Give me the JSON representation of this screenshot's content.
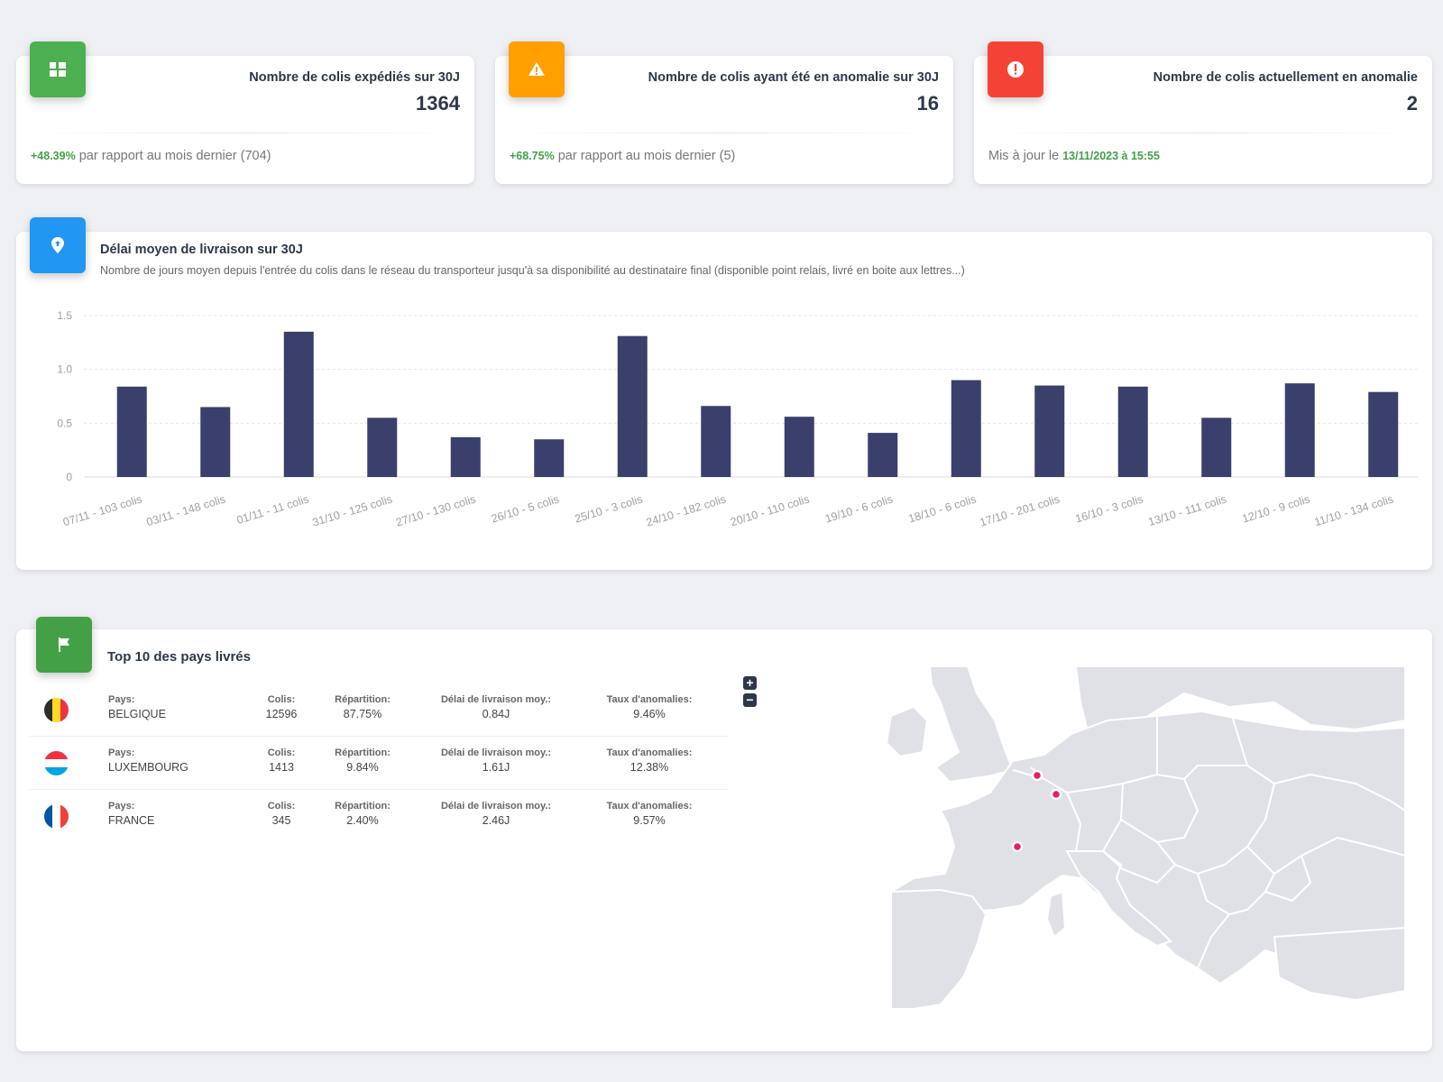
{
  "stats": [
    {
      "title": "Nombre de colis expédiés sur 30J",
      "value": "1364",
      "change": "+48.39%",
      "foot_text": " par rapport au mois dernier (704)",
      "color": "#4caf50",
      "icon": "parcels-icon"
    },
    {
      "title": "Nombre de colis ayant été en anomalie sur 30J",
      "value": "16",
      "change": "+68.75%",
      "foot_text": " par rapport au mois dernier (5)",
      "color": "#ffa000",
      "icon": "warning-icon"
    },
    {
      "title": "Nombre de colis actuellement en anomalie",
      "value": "2",
      "foot_prefix": "Mis à jour le ",
      "updated": "13/11/2023 à 15:55",
      "color": "#f44336",
      "icon": "alert-circle-icon"
    }
  ],
  "chart": {
    "title": "Délai moyen de livraison sur 30J",
    "subtitle": "Nombre de jours moyen depuis l'entrée du colis dans le réseau du transporteur jusqu'à sa disponibilité au destinataire final (disponible point relais, livré en boite aux lettres...)",
    "badge_color": "#2196f3",
    "icon": "location-pin-icon"
  },
  "chart_data": {
    "type": "bar",
    "categories": [
      "07/11 - 103 colis",
      "03/11 - 148 colis",
      "01/11 - 11 colis",
      "31/10 - 125 colis",
      "27/10 - 130 colis",
      "26/10 - 5 colis",
      "25/10 - 3 colis",
      "24/10 - 182 colis",
      "20/10 - 110 colis",
      "19/10 - 6 colis",
      "18/10 - 6 colis",
      "17/10 - 201 colis",
      "16/10 - 3 colis",
      "13/10 - 111 colis",
      "12/10 - 9 colis",
      "11/10 - 134 colis"
    ],
    "values": [
      0.84,
      0.65,
      1.35,
      0.55,
      0.37,
      0.35,
      1.31,
      0.66,
      0.56,
      0.41,
      0.9,
      0.85,
      0.84,
      0.55,
      0.87,
      0.79
    ],
    "yticks": [
      "0",
      "0.5",
      "1.0",
      "1.5"
    ],
    "ylim": [
      0,
      1.5
    ],
    "bar_color": "#3b3f6b",
    "grid": true
  },
  "countries": {
    "title": "Top 10 des pays livrés",
    "badge_color": "#43a047",
    "icon": "flag-icon",
    "labels": {
      "country": "Pays:",
      "parcels": "Colis:",
      "share": "Répartition:",
      "delay": "Délai de livraison moy.:",
      "anomaly": "Taux d'anomalies:"
    },
    "rows": [
      {
        "country": "BELGIQUE",
        "parcels": "12596",
        "share": "87.75%",
        "delay": "0.84J",
        "anomaly": "9.46%",
        "flag": [
          "#2d2d2d",
          "#fdda24",
          "#ef3340"
        ],
        "flag_dir": "vertical"
      },
      {
        "country": "LUXEMBOURG",
        "parcels": "1413",
        "share": "9.84%",
        "delay": "1.61J",
        "anomaly": "12.38%",
        "flag": [
          "#ef3340",
          "#ffffff",
          "#00a3e0"
        ],
        "flag_dir": "horizontal"
      },
      {
        "country": "FRANCE",
        "parcels": "345",
        "share": "2.40%",
        "delay": "2.46J",
        "anomaly": "9.57%",
        "flag": [
          "#0055a4",
          "#ffffff",
          "#ef4135"
        ],
        "flag_dir": "vertical"
      }
    ]
  },
  "map": {
    "zoom_in": "+",
    "zoom_out": "−",
    "land_color": "#dfe1e6",
    "border_color": "#ffffff",
    "marker_color": "#e91e63"
  }
}
